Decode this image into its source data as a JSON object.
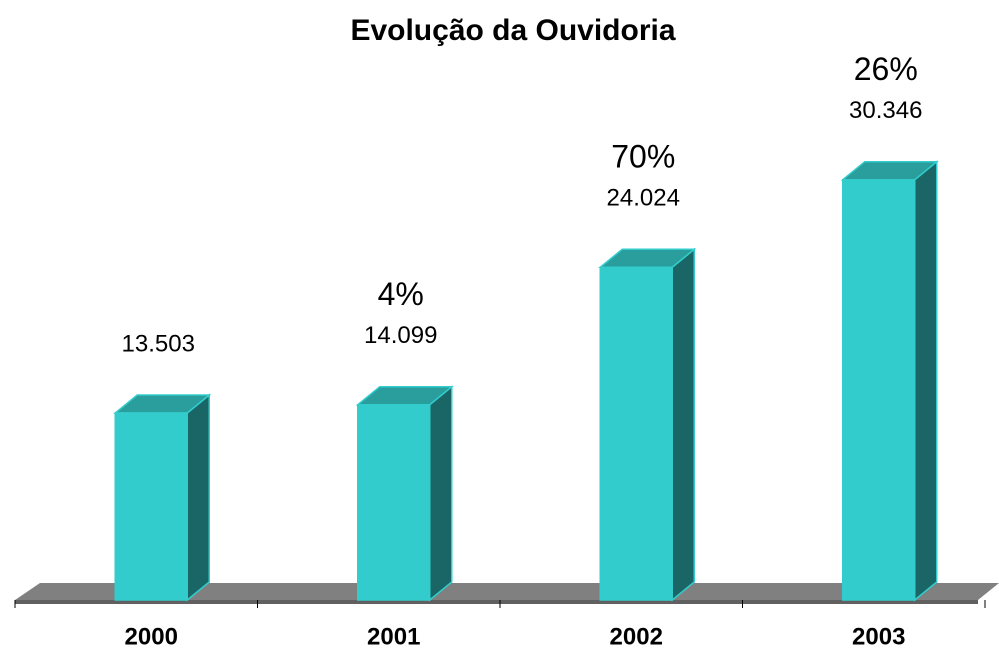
{
  "chart_data": {
    "type": "bar3d",
    "title": "Evolução da Ouvidoria",
    "categories": [
      "2000",
      "2001",
      "2002",
      "2003"
    ],
    "values": [
      13503,
      14099,
      24024,
      30346
    ],
    "value_labels": [
      "13.503",
      "14.099",
      "24.024",
      "30.346"
    ],
    "annotations": [
      {
        "category": "2001",
        "text": "4%"
      },
      {
        "category": "2002",
        "text": "70%"
      },
      {
        "category": "2003",
        "text": "26%"
      }
    ],
    "color": "#33cccc",
    "side_color": "#1a6666",
    "top_color": "#2a9d9d",
    "ylim": [
      0,
      40000
    ]
  }
}
